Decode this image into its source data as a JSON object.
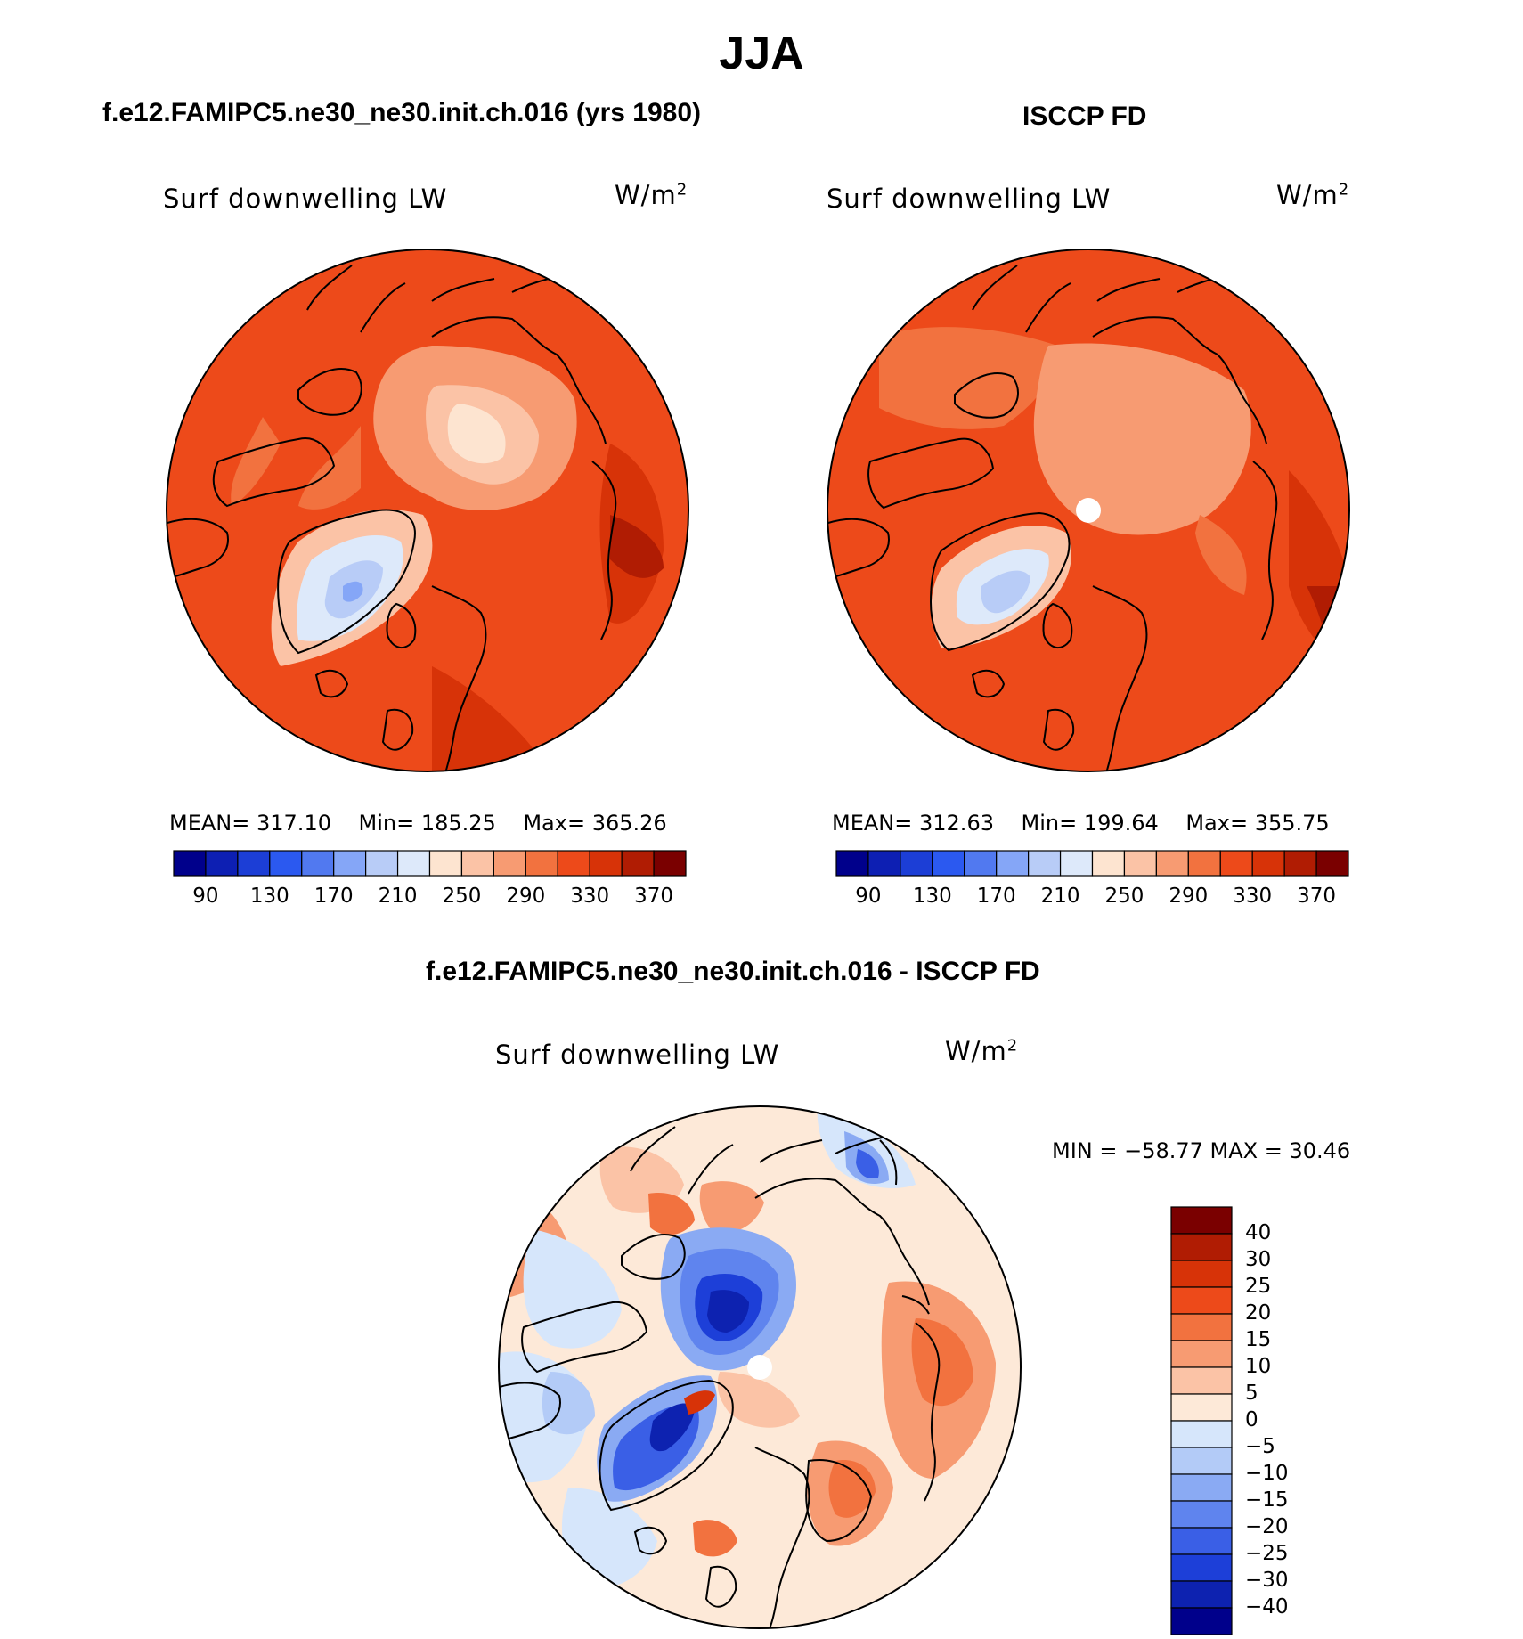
{
  "page_title": "JJA",
  "panels": {
    "model": {
      "title": "f.e12.FAMIPC5.ne30_ne30.init.ch.016 (yrs 1980)",
      "variable": "Surf downwelling LW",
      "units_base": "W/m",
      "units_exp": "2",
      "stats": {
        "mean_label": "MEAN=",
        "mean": "317.10",
        "min_label": "Min=",
        "min": "185.25",
        "max_label": "Max=",
        "max": "365.26"
      }
    },
    "obs": {
      "title": "ISCCP FD",
      "variable": "Surf downwelling LW",
      "units_base": "W/m",
      "units_exp": "2",
      "stats": {
        "mean_label": "MEAN=",
        "mean": "312.63",
        "min_label": "Min=",
        "min": "199.64",
        "max_label": "Max=",
        "max": "355.75"
      }
    },
    "diff": {
      "title": "f.e12.FAMIPC5.ne30_ne30.init.ch.016 - ISCCP FD",
      "variable": "Surf downwelling LW",
      "units_base": "W/m",
      "units_exp": "2",
      "minmax_text": "MIN = −58.77 MAX =   30.46"
    }
  },
  "chart_data": [
    {
      "type": "heatmap",
      "title": "f.e12.FAMIPC5.ne30_ne30.init.ch.016 (yrs 1980)",
      "projection": "north polar stereographic",
      "variable": "Surf downwelling LW",
      "units": "W/m2",
      "mean": 317.1,
      "min": 185.25,
      "max": 365.26,
      "colorbar": {
        "orientation": "horizontal",
        "tick_labels": [
          "90",
          "130",
          "170",
          "210",
          "250",
          "290",
          "330",
          "370"
        ],
        "colors": [
          "#00008b",
          "#0d1fb3",
          "#1c3ed6",
          "#2b59f0",
          "#5179f0",
          "#85a6f7",
          "#b8ccf7",
          "#dde9fa",
          "#fde4d0",
          "#fbc3a6",
          "#f79b72",
          "#f2723f",
          "#ed4a1a",
          "#d73308",
          "#b01c03",
          "#7a0000"
        ]
      }
    },
    {
      "type": "heatmap",
      "title": "ISCCP FD",
      "projection": "north polar stereographic",
      "variable": "Surf downwelling LW",
      "units": "W/m2",
      "mean": 312.63,
      "min": 199.64,
      "max": 355.75,
      "colorbar": {
        "orientation": "horizontal",
        "tick_labels": [
          "90",
          "130",
          "170",
          "210",
          "250",
          "290",
          "330",
          "370"
        ],
        "colors": [
          "#00008b",
          "#0d1fb3",
          "#1c3ed6",
          "#2b59f0",
          "#5179f0",
          "#85a6f7",
          "#b8ccf7",
          "#dde9fa",
          "#fde4d0",
          "#fbc3a6",
          "#f79b72",
          "#f2723f",
          "#ed4a1a",
          "#d73308",
          "#b01c03",
          "#7a0000"
        ]
      }
    },
    {
      "type": "heatmap",
      "title": "f.e12.FAMIPC5.ne30_ne30.init.ch.016 - ISCCP FD",
      "projection": "north polar stereographic",
      "variable": "Surf downwelling LW",
      "units": "W/m2",
      "min": -58.77,
      "max": 30.46,
      "colorbar": {
        "orientation": "vertical",
        "tick_labels": [
          "40",
          "30",
          "25",
          "20",
          "15",
          "10",
          "5",
          "0",
          "−5",
          "−10",
          "−15",
          "−20",
          "−25",
          "−30",
          "−40"
        ],
        "colors": [
          "#7a0000",
          "#b01c03",
          "#d73308",
          "#ed4a1a",
          "#f2723f",
          "#f79b72",
          "#fbc3a6",
          "#fde9d8",
          "#d6e6fb",
          "#b3cbf7",
          "#8aaaf3",
          "#5f84ee",
          "#3a5fe6",
          "#1d3fd8",
          "#0d22b0",
          "#00008b"
        ]
      }
    }
  ]
}
